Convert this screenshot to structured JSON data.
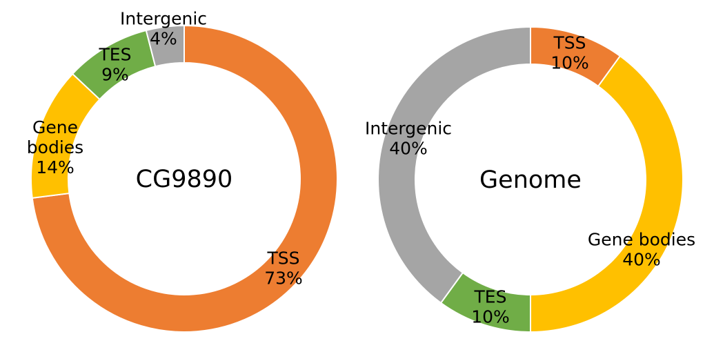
{
  "chart_data": [
    {
      "type": "donut",
      "center_label": "CG9890",
      "slices": [
        {
          "label": "TSS",
          "lines": [
            "TSS",
            "73%"
          ],
          "value": 73,
          "color": "#ED7D31"
        },
        {
          "label": "Gene bodies",
          "lines": [
            "Gene",
            "bodies",
            "14%"
          ],
          "value": 14,
          "color": "#FFC000"
        },
        {
          "label": "TES",
          "lines": [
            "TES",
            "9%"
          ],
          "value": 9,
          "color": "#70AD47"
        },
        {
          "label": "Intergenic",
          "lines": [
            "Intergenic",
            "4%"
          ],
          "value": 4,
          "color": "#A5A5A5"
        }
      ]
    },
    {
      "type": "donut",
      "center_label": "Genome",
      "slices": [
        {
          "label": "TSS",
          "lines": [
            "TSS",
            "10%"
          ],
          "value": 10,
          "color": "#ED7D31"
        },
        {
          "label": "Gene bodies",
          "lines": [
            "Gene bodies",
            "40%"
          ],
          "value": 40,
          "color": "#FFC000"
        },
        {
          "label": "TES",
          "lines": [
            "TES",
            "10%"
          ],
          "value": 10,
          "color": "#70AD47"
        },
        {
          "label": "Intergenic",
          "lines": [
            "Intergenic",
            "40%"
          ],
          "value": 40,
          "color": "#A5A5A5"
        }
      ]
    }
  ]
}
